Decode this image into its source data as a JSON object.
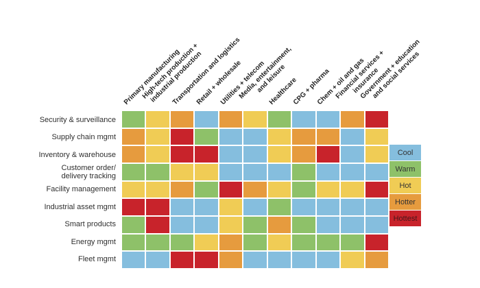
{
  "figure": {
    "background": "#ffffff"
  },
  "chart_data": {
    "type": "heatmap",
    "title": "",
    "columns": [
      "Primary manufacturing",
      "High-tech production +\nindustrial production",
      "Transportation and logistics",
      "Retail + wholesale",
      "Utilities + telecom",
      "Media, entertainment,\nand leisure",
      "Healthcare",
      "CPG + pharma",
      "Chem + oil and gas",
      "Financial services +\ninsurance",
      "Government + education\nand social services"
    ],
    "rows": [
      "Security & surveillance",
      "Supply chain mgmt",
      "Inventory & warehouse",
      "Customer order/\ndelivery tracking",
      "Facility management",
      "Industrial asset mgmt",
      "Smart products",
      "Energy mgmt",
      "Fleet mgmt"
    ],
    "heat": [
      [
        "warm",
        "hot",
        "hotter",
        "cool",
        "hotter",
        "hot",
        "warm",
        "cool",
        "cool",
        "hotter",
        "hottest"
      ],
      [
        "hotter",
        "hot",
        "hottest",
        "warm",
        "cool",
        "cool",
        "hot",
        "hotter",
        "hotter",
        "cool",
        "hot"
      ],
      [
        "hotter",
        "hot",
        "hottest",
        "hottest",
        "cool",
        "cool",
        "hot",
        "hotter",
        "hottest",
        "cool",
        "hot"
      ],
      [
        "warm",
        "warm",
        "hot",
        "hot",
        "cool",
        "cool",
        "cool",
        "warm",
        "cool",
        "cool",
        "cool"
      ],
      [
        "hot",
        "hot",
        "hotter",
        "warm",
        "hottest",
        "hotter",
        "hot",
        "warm",
        "hot",
        "hot",
        "hottest"
      ],
      [
        "hottest",
        "hottest",
        "cool",
        "cool",
        "hot",
        "cool",
        "warm",
        "cool",
        "cool",
        "cool",
        "cool"
      ],
      [
        "warm",
        "hottest",
        "cool",
        "cool",
        "hot",
        "warm",
        "hotter",
        "warm",
        "cool",
        "cool",
        "cool"
      ],
      [
        "warm",
        "warm",
        "warm",
        "hot",
        "hotter",
        "warm",
        "hot",
        "warm",
        "warm",
        "warm",
        "hottest"
      ],
      [
        "cool",
        "cool",
        "hottest",
        "hottest",
        "hotter",
        "cool",
        "cool",
        "cool",
        "cool",
        "hot",
        "hotter"
      ]
    ],
    "legend": [
      {
        "key": "cool",
        "label": "Cool",
        "color": "#85bede",
        "text_color": "#333333"
      },
      {
        "key": "warm",
        "label": "Warm",
        "color": "#8ec169",
        "text_color": "#333333"
      },
      {
        "key": "hot",
        "label": "Hot",
        "color": "#f0cc55",
        "text_color": "#333333"
      },
      {
        "key": "hotter",
        "label": "Hotter",
        "color": "#e69b3e",
        "text_color": "#333333"
      },
      {
        "key": "hottest",
        "label": "Hottest",
        "color": "#c8232b",
        "text_color": "#46161a"
      }
    ],
    "layout_hints": {
      "legend_position": "right",
      "column_labels_rotation_deg": -45,
      "grid_gap_color": "#ffffff"
    }
  }
}
